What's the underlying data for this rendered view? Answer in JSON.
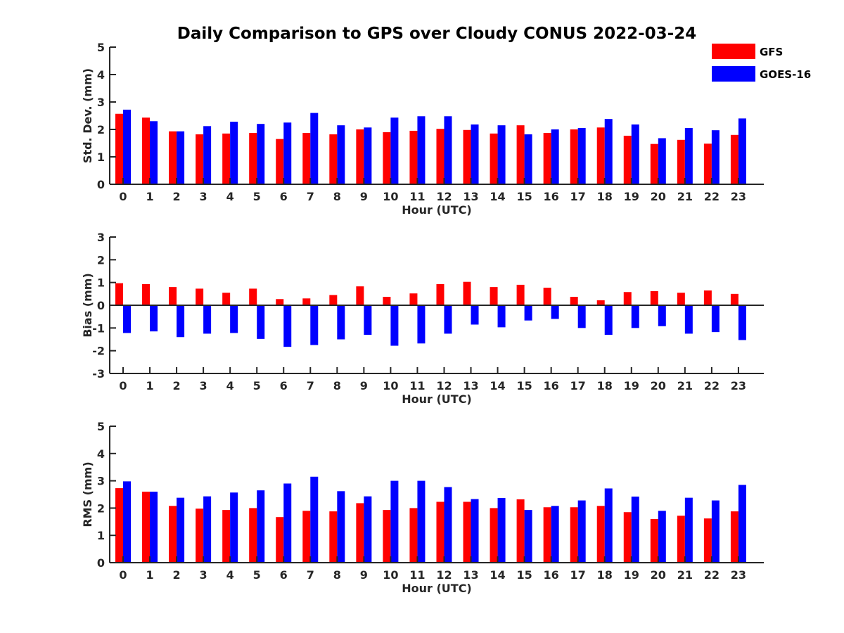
{
  "figure": {
    "title": "Daily Comparison to GPS over Cloudy CONUS 2022-03-24"
  },
  "legend": {
    "placement": "top-right",
    "items": [
      {
        "label": "GFS",
        "color": "#ff0000"
      },
      {
        "label": "GOES-16",
        "color": "#0000ff"
      }
    ]
  },
  "chart_data": [
    {
      "type": "bar",
      "xlabel": "Hour (UTC)",
      "ylabel": "Std. Dev. (mm)",
      "ylim": [
        0,
        5
      ],
      "yticks": [
        0,
        1,
        2,
        3,
        4,
        5
      ],
      "categories": [
        "0",
        "1",
        "2",
        "3",
        "4",
        "5",
        "6",
        "7",
        "8",
        "9",
        "10",
        "11",
        "12",
        "13",
        "14",
        "15",
        "16",
        "17",
        "18",
        "19",
        "20",
        "21",
        "22",
        "23"
      ],
      "series": [
        {
          "name": "GFS",
          "color": "#ff0000",
          "values": [
            2.57,
            2.43,
            1.93,
            1.82,
            1.85,
            1.87,
            1.65,
            1.87,
            1.82,
            2.0,
            1.9,
            1.95,
            2.02,
            1.98,
            1.85,
            2.15,
            1.87,
            2.0,
            2.07,
            1.77,
            1.47,
            1.62,
            1.48,
            1.8
          ]
        },
        {
          "name": "GOES-16",
          "color": "#0000ff",
          "values": [
            2.72,
            2.3,
            1.93,
            2.12,
            2.28,
            2.2,
            2.25,
            2.6,
            2.15,
            2.07,
            2.43,
            2.48,
            2.48,
            2.18,
            2.15,
            1.82,
            2.0,
            2.05,
            2.38,
            2.18,
            1.68,
            2.05,
            1.97,
            2.4
          ]
        }
      ]
    },
    {
      "type": "bar",
      "xlabel": "Hour (UTC)",
      "ylabel": "Bias (mm)",
      "ylim": [
        -3,
        3
      ],
      "yticks": [
        -3,
        -2,
        -1,
        0,
        1,
        2,
        3
      ],
      "categories": [
        "0",
        "1",
        "2",
        "3",
        "4",
        "5",
        "6",
        "7",
        "8",
        "9",
        "10",
        "11",
        "12",
        "13",
        "14",
        "15",
        "16",
        "17",
        "18",
        "19",
        "20",
        "21",
        "22",
        "23"
      ],
      "series": [
        {
          "name": "GFS",
          "color": "#ff0000",
          "values": [
            0.97,
            0.93,
            0.8,
            0.73,
            0.55,
            0.73,
            0.27,
            0.3,
            0.45,
            0.83,
            0.37,
            0.52,
            0.93,
            1.03,
            0.8,
            0.9,
            0.77,
            0.37,
            0.22,
            0.58,
            0.62,
            0.55,
            0.65,
            0.5
          ]
        },
        {
          "name": "GOES-16",
          "color": "#0000ff",
          "values": [
            -1.22,
            -1.15,
            -1.4,
            -1.25,
            -1.22,
            -1.48,
            -1.83,
            -1.75,
            -1.5,
            -1.3,
            -1.78,
            -1.68,
            -1.25,
            -0.85,
            -0.97,
            -0.67,
            -0.6,
            -1.0,
            -1.3,
            -1.0,
            -0.92,
            -1.25,
            -1.18,
            -1.53
          ]
        }
      ]
    },
    {
      "type": "bar",
      "xlabel": "Hour (UTC)",
      "ylabel": "RMS (mm)",
      "ylim": [
        0,
        5
      ],
      "yticks": [
        0,
        1,
        2,
        3,
        4,
        5
      ],
      "categories": [
        "0",
        "1",
        "2",
        "3",
        "4",
        "5",
        "6",
        "7",
        "8",
        "9",
        "10",
        "11",
        "12",
        "13",
        "14",
        "15",
        "16",
        "17",
        "18",
        "19",
        "20",
        "21",
        "22",
        "23"
      ],
      "series": [
        {
          "name": "GFS",
          "color": "#ff0000",
          "values": [
            2.73,
            2.6,
            2.08,
            1.98,
            1.93,
            2.0,
            1.67,
            1.9,
            1.88,
            2.18,
            1.93,
            2.0,
            2.23,
            2.23,
            2.0,
            2.32,
            2.03,
            2.03,
            2.08,
            1.85,
            1.6,
            1.72,
            1.62,
            1.88
          ]
        },
        {
          "name": "GOES-16",
          "color": "#0000ff",
          "values": [
            2.98,
            2.6,
            2.38,
            2.43,
            2.57,
            2.65,
            2.9,
            3.15,
            2.62,
            2.43,
            3.0,
            3.0,
            2.77,
            2.33,
            2.37,
            1.93,
            2.08,
            2.28,
            2.72,
            2.42,
            1.9,
            2.38,
            2.28,
            2.85
          ]
        }
      ]
    }
  ]
}
